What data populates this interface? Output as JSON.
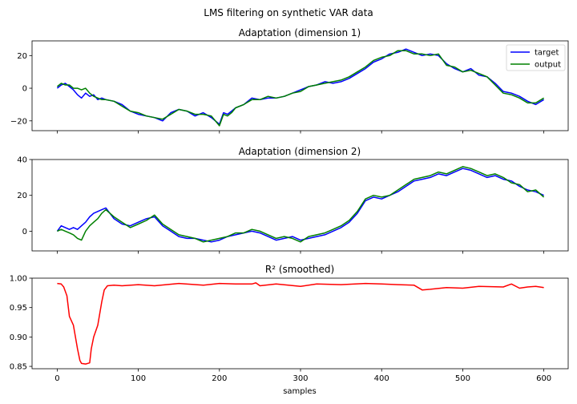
{
  "figure": {
    "suptitle": "LMS filtering on synthetic VAR data",
    "xlabel": "samples"
  },
  "colors": {
    "target": "#0000ff",
    "output": "#008000",
    "r2": "#ff0000"
  },
  "chart_data": [
    {
      "type": "line",
      "title": "Adaptation (dimension 1)",
      "xlabel": "",
      "ylabel": "",
      "xlim": [
        -31,
        630
      ],
      "ylim": [
        -26,
        29
      ],
      "xticks": [
        0,
        100,
        200,
        300,
        400,
        500,
        600
      ],
      "xtick_labels_visible": false,
      "yticks": [
        -20,
        0,
        20
      ],
      "ytick_labels": [
        "−20",
        "0",
        "20"
      ],
      "legend": {
        "placement": "top-right",
        "entries": [
          "target",
          "output"
        ]
      },
      "grid": false,
      "series": [
        {
          "name": "target",
          "x": [
            0,
            5,
            10,
            15,
            20,
            25,
            30,
            35,
            40,
            45,
            50,
            55,
            60,
            70,
            80,
            90,
            100,
            110,
            120,
            130,
            140,
            150,
            160,
            170,
            180,
            190,
            200,
            205,
            210,
            215,
            220,
            230,
            240,
            250,
            260,
            270,
            280,
            290,
            300,
            310,
            320,
            330,
            340,
            350,
            360,
            370,
            380,
            390,
            400,
            410,
            420,
            430,
            440,
            450,
            460,
            470,
            480,
            490,
            500,
            510,
            520,
            530,
            540,
            550,
            560,
            570,
            580,
            590,
            600
          ],
          "values": [
            0,
            2,
            3,
            1,
            -1,
            -4,
            -6,
            -3,
            -5,
            -4,
            -7,
            -6,
            -7,
            -8,
            -10,
            -14,
            -16,
            -17,
            -18,
            -20,
            -15,
            -13,
            -14,
            -17,
            -15,
            -18,
            -22,
            -15,
            -16,
            -14,
            -12,
            -10,
            -6,
            -7,
            -6,
            -6,
            -5,
            -3,
            -1,
            1,
            2,
            4,
            3,
            4,
            6,
            9,
            12,
            16,
            18,
            21,
            22,
            24,
            22,
            20,
            21,
            20,
            15,
            12,
            10,
            12,
            8,
            7,
            3,
            -2,
            -3,
            -5,
            -8,
            -10,
            -7
          ],
          "color": "#0000ff"
        },
        {
          "name": "output",
          "x": [
            0,
            5,
            10,
            15,
            20,
            25,
            30,
            35,
            40,
            45,
            50,
            55,
            60,
            70,
            80,
            90,
            100,
            110,
            120,
            130,
            140,
            150,
            160,
            170,
            180,
            190,
            200,
            205,
            210,
            215,
            220,
            230,
            240,
            250,
            260,
            270,
            280,
            290,
            300,
            310,
            320,
            330,
            340,
            350,
            360,
            370,
            380,
            390,
            400,
            410,
            420,
            430,
            440,
            450,
            460,
            470,
            480,
            490,
            500,
            510,
            520,
            530,
            540,
            550,
            560,
            570,
            580,
            590,
            600
          ],
          "values": [
            1,
            3,
            2,
            2,
            0,
            0,
            -1,
            0,
            -3,
            -5,
            -6,
            -7,
            -7,
            -8,
            -11,
            -14,
            -15,
            -17,
            -18,
            -19,
            -16,
            -13,
            -14,
            -16,
            -16,
            -17,
            -23,
            -16,
            -17,
            -15,
            -12,
            -10,
            -7,
            -7,
            -5,
            -6,
            -5,
            -3,
            -2,
            1,
            2,
            3,
            4,
            5,
            7,
            10,
            13,
            17,
            19,
            20,
            23,
            23,
            21,
            21,
            20,
            21,
            14,
            13,
            10,
            11,
            9,
            7,
            2,
            -3,
            -4,
            -6,
            -9,
            -9,
            -6
          ],
          "color": "#008000"
        }
      ]
    },
    {
      "type": "line",
      "title": "Adaptation (dimension 2)",
      "xlabel": "",
      "ylabel": "",
      "xlim": [
        -31,
        630
      ],
      "ylim": [
        -11,
        40
      ],
      "xticks": [
        0,
        100,
        200,
        300,
        400,
        500,
        600
      ],
      "xtick_labels_visible": false,
      "yticks": [
        0,
        20,
        40
      ],
      "ytick_labels": [
        "0",
        "20",
        "40"
      ],
      "grid": false,
      "series": [
        {
          "name": "target",
          "x": [
            0,
            5,
            10,
            15,
            20,
            25,
            30,
            35,
            40,
            45,
            50,
            55,
            60,
            70,
            80,
            90,
            100,
            110,
            120,
            130,
            140,
            150,
            160,
            170,
            180,
            190,
            200,
            210,
            220,
            230,
            240,
            250,
            260,
            270,
            280,
            290,
            300,
            310,
            320,
            330,
            340,
            350,
            360,
            370,
            380,
            390,
            400,
            410,
            420,
            430,
            440,
            450,
            460,
            470,
            480,
            490,
            500,
            510,
            520,
            530,
            540,
            550,
            560,
            570,
            580,
            590,
            600
          ],
          "values": [
            0,
            3,
            2,
            1,
            2,
            1,
            3,
            5,
            8,
            10,
            11,
            12,
            13,
            7,
            4,
            3,
            5,
            7,
            8,
            3,
            0,
            -3,
            -4,
            -4,
            -5,
            -6,
            -5,
            -3,
            -2,
            -1,
            0,
            -1,
            -3,
            -5,
            -4,
            -3,
            -5,
            -4,
            -3,
            -2,
            0,
            2,
            5,
            10,
            17,
            19,
            18,
            20,
            22,
            25,
            28,
            29,
            30,
            32,
            31,
            33,
            35,
            34,
            32,
            30,
            31,
            29,
            28,
            25,
            23,
            22,
            20
          ],
          "color": "#0000ff"
        },
        {
          "name": "output",
          "x": [
            0,
            5,
            10,
            15,
            20,
            25,
            30,
            35,
            40,
            45,
            50,
            55,
            60,
            70,
            80,
            90,
            100,
            110,
            120,
            130,
            140,
            150,
            160,
            170,
            180,
            190,
            200,
            210,
            220,
            230,
            240,
            250,
            260,
            270,
            280,
            290,
            300,
            310,
            320,
            330,
            340,
            350,
            360,
            370,
            380,
            390,
            400,
            410,
            420,
            430,
            440,
            450,
            460,
            470,
            480,
            490,
            500,
            510,
            520,
            530,
            540,
            550,
            560,
            570,
            580,
            590,
            600
          ],
          "values": [
            0,
            1,
            0,
            -1,
            -2,
            -4,
            -5,
            0,
            3,
            5,
            7,
            10,
            12,
            8,
            5,
            2,
            4,
            6,
            9,
            4,
            1,
            -2,
            -3,
            -4,
            -6,
            -5,
            -4,
            -3,
            -1,
            -1,
            1,
            0,
            -2,
            -4,
            -3,
            -4,
            -6,
            -3,
            -2,
            -1,
            1,
            3,
            6,
            11,
            18,
            20,
            19,
            20,
            23,
            26,
            29,
            30,
            31,
            33,
            32,
            34,
            36,
            35,
            33,
            31,
            32,
            30,
            27,
            26,
            22,
            23,
            19
          ],
          "color": "#008000"
        }
      ]
    },
    {
      "type": "line",
      "title": "R² (smoothed)",
      "xlabel": "samples",
      "ylabel": "",
      "xlim": [
        -31,
        630
      ],
      "ylim": [
        0.846,
        1.0
      ],
      "xticks": [
        0,
        100,
        200,
        300,
        400,
        500,
        600
      ],
      "xtick_labels": [
        "0",
        "100",
        "200",
        "300",
        "400",
        "500",
        "600"
      ],
      "yticks": [
        0.85,
        0.9,
        0.95,
        1.0
      ],
      "ytick_labels": [
        "0.85",
        "0.90",
        "0.95",
        "1.00"
      ],
      "grid": false,
      "series": [
        {
          "name": "",
          "x": [
            0,
            5,
            8,
            12,
            15,
            20,
            25,
            28,
            30,
            35,
            40,
            42,
            45,
            50,
            55,
            58,
            62,
            70,
            80,
            100,
            120,
            150,
            180,
            200,
            220,
            240,
            245,
            250,
            270,
            300,
            320,
            350,
            380,
            400,
            420,
            440,
            450,
            460,
            480,
            500,
            520,
            550,
            560,
            570,
            580,
            590,
            600
          ],
          "values": [
            0.991,
            0.99,
            0.985,
            0.97,
            0.935,
            0.92,
            0.88,
            0.86,
            0.855,
            0.854,
            0.856,
            0.88,
            0.9,
            0.92,
            0.96,
            0.98,
            0.987,
            0.988,
            0.987,
            0.989,
            0.987,
            0.991,
            0.988,
            0.991,
            0.99,
            0.99,
            0.992,
            0.987,
            0.99,
            0.986,
            0.99,
            0.989,
            0.991,
            0.99,
            0.989,
            0.988,
            0.98,
            0.981,
            0.984,
            0.983,
            0.986,
            0.985,
            0.99,
            0.983,
            0.985,
            0.986,
            0.984
          ],
          "color": "#ff0000"
        }
      ]
    }
  ]
}
